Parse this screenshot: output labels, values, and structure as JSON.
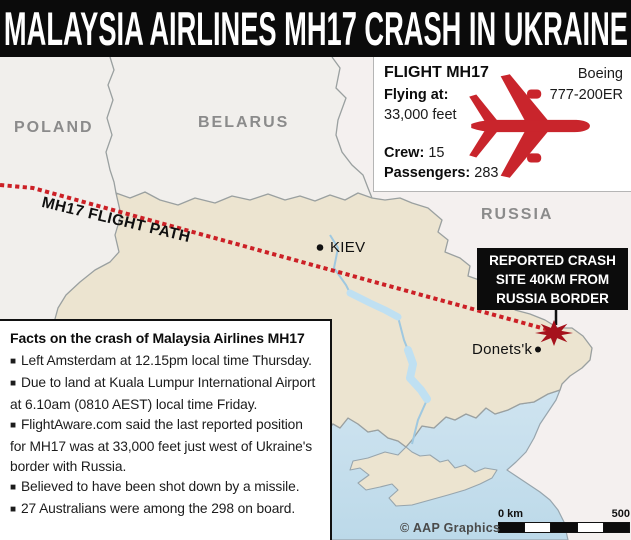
{
  "title": "MALAYSIA AIRLINES MH17 CRASH IN UKRAINE",
  "colors": {
    "accent_red": "#cc2026",
    "plane_red": "#c9252c",
    "starburst_red": "#a6121c",
    "ukraine_fill": "#ece4d0",
    "land_fill": "#f1efec",
    "russia_fill": "#f4f0ef",
    "sea_fill": "#cfe4f0",
    "sea_deep": "#bcd9e9",
    "water_fill": "#bfe0f2",
    "border_gray": "#9aa0a0",
    "label_gray": "#8b8b8b"
  },
  "map": {
    "labels": {
      "poland": "POLAND",
      "belarus": "BELARUS",
      "russia": "RUSSIA",
      "kiev": "KIEV",
      "kiev_marker": "•",
      "donetsk": "Donets'k",
      "donetsk_marker": "•",
      "flight_path": "MH17 FLIGHT PATH"
    }
  },
  "flight_info": {
    "title": "FLIGHT MH17",
    "flying_at_label": "Flying at:",
    "flying_at_value": "33,000 feet",
    "crew_label": "Crew:",
    "crew_value": "15",
    "passengers_label": "Passengers:",
    "passengers_value": "283",
    "aircraft_line1": "Boeing",
    "aircraft_line2": "777-200ER",
    "plane_icon": "airplane-top-view-icon"
  },
  "crash_label": {
    "lines": [
      "REPORTED CRASH",
      "SITE 40KM FROM",
      "RUSSIA BORDER"
    ]
  },
  "facts": {
    "title": "Facts on the crash of Malaysia Airlines MH17",
    "bullet_char": "■",
    "items": [
      "Left Amsterdam at 12.15pm local time Thursday.",
      "Due to land at Kuala Lumpur International Airport at 6.10am (0810 AEST) local time Friday.",
      "FlightAware.com said the last reported position for MH17 was at 33,000 feet just west of Ukraine's border with Russia.",
      "Believed to have been shot down by a missile.",
      "27 Australians were among the 298 on board."
    ]
  },
  "scale_bar": {
    "start_label": "0 km",
    "end_label": "500",
    "segments": 5
  },
  "credit": "© AAP Graphics"
}
